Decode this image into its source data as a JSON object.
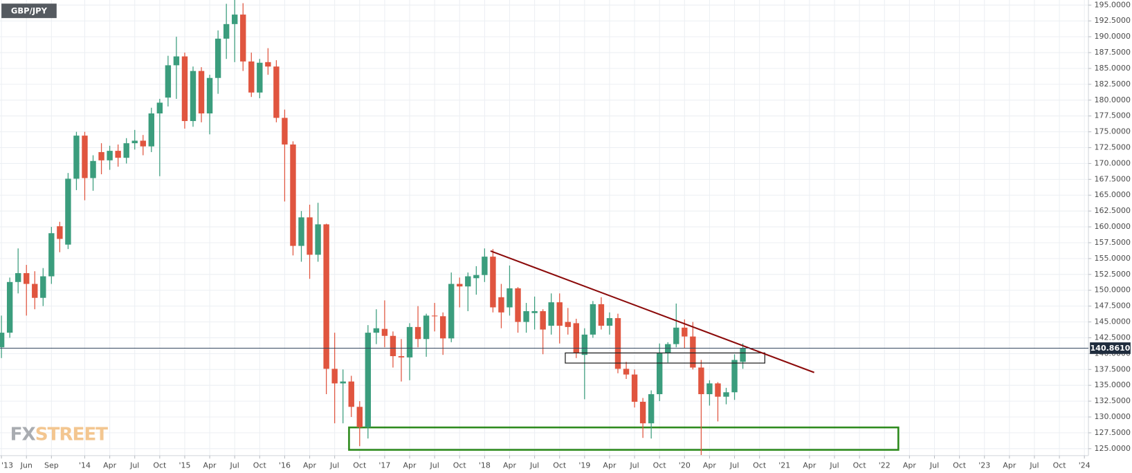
{
  "chart_data": {
    "type": "candlestick",
    "symbol": "GBP/JPY",
    "watermark": {
      "left": "FX",
      "right": "STREET"
    },
    "up_color": "#3b9d7d",
    "down_color": "#e0553f",
    "grid": true,
    "x": [
      "2013-03",
      "2013-04",
      "2013-05",
      "2013-06",
      "2013-07",
      "2013-08",
      "2013-09",
      "2013-10",
      "2013-11",
      "2013-12",
      "2014-01",
      "2014-02",
      "2014-03",
      "2014-04",
      "2014-05",
      "2014-06",
      "2014-07",
      "2014-08",
      "2014-09",
      "2014-10",
      "2014-11",
      "2014-12",
      "2015-01",
      "2015-02",
      "2015-03",
      "2015-04",
      "2015-05",
      "2015-06",
      "2015-07",
      "2015-08",
      "2015-09",
      "2015-10",
      "2015-11",
      "2015-12",
      "2016-01",
      "2016-02",
      "2016-03",
      "2016-04",
      "2016-05",
      "2016-06",
      "2016-07",
      "2016-08",
      "2016-09",
      "2016-10",
      "2016-11",
      "2016-12",
      "2017-01",
      "2017-02",
      "2017-03",
      "2017-04",
      "2017-05",
      "2017-06",
      "2017-07",
      "2017-08",
      "2017-09",
      "2017-10",
      "2017-11",
      "2017-12",
      "2018-01",
      "2018-02",
      "2018-03",
      "2018-04",
      "2018-05",
      "2018-06",
      "2018-07",
      "2018-08",
      "2018-09",
      "2018-10",
      "2018-11",
      "2018-12",
      "2019-01",
      "2019-02",
      "2019-03",
      "2019-04",
      "2019-05",
      "2019-06",
      "2019-07",
      "2019-08",
      "2019-09",
      "2019-10",
      "2019-11",
      "2019-12",
      "2020-01",
      "2020-02",
      "2020-03",
      "2020-04",
      "2020-05",
      "2020-06",
      "2020-07",
      "2020-08"
    ],
    "open": [
      141.0,
      143.3,
      151.3,
      152.7,
      151.0,
      148.8,
      152.2,
      160.1,
      157.2,
      167.6,
      174.4,
      167.7,
      171.8,
      170.5,
      172.0,
      170.9,
      173.2,
      173.6,
      172.7,
      177.9,
      180.4,
      185.5,
      186.9,
      176.7,
      184.6,
      177.9,
      183.5,
      189.7,
      192.0,
      193.5,
      186.1,
      181.2,
      186.0,
      185.3,
      177.2,
      173.0,
      157.0,
      161.5,
      155.6,
      160.4,
      137.6,
      135.3,
      135.6,
      131.6,
      128.4,
      143.3,
      143.9,
      142.8,
      139.6,
      139.4,
      144.2,
      142.3,
      146.0,
      145.9,
      142.4,
      151.0,
      150.6,
      151.9,
      152.4,
      155.3,
      148.9,
      147.3,
      150.3,
      145.0,
      146.4,
      146.7,
      144.4,
      148.1,
      145.0,
      144.8,
      139.8,
      143.0,
      147.8,
      144.4,
      145.6,
      137.6,
      136.7,
      132.4,
      129.0,
      133.6,
      140.1,
      141.5,
      144.1,
      142.7,
      137.8,
      133.6,
      135.3,
      133.2,
      133.9,
      138.7
    ],
    "high": [
      146.0,
      152.0,
      156.6,
      154.0,
      153.0,
      153.5,
      160.0,
      160.8,
      168.5,
      175.0,
      175.0,
      171.3,
      173.2,
      172.8,
      173.0,
      174.0,
      175.3,
      174.5,
      178.8,
      180.2,
      187.0,
      190.0,
      187.5,
      185.3,
      185.2,
      184.0,
      191.0,
      195.2,
      195.8,
      195.3,
      187.5,
      186.5,
      188.2,
      186.3,
      178.5,
      173.5,
      162.5,
      163.5,
      163.8,
      160.5,
      143.3,
      137.5,
      136.5,
      132.5,
      144.5,
      147.0,
      148.4,
      143.5,
      142.3,
      144.8,
      147.5,
      146.3,
      148.0,
      146.5,
      152.8,
      152.0,
      152.8,
      153.8,
      156.6,
      156.5,
      151.0,
      153.9,
      150.5,
      148.0,
      149.0,
      147.0,
      149.5,
      149.5,
      147.2,
      145.5,
      144.0,
      148.3,
      148.9,
      146.5,
      146.3,
      138.7,
      137.5,
      133.0,
      134.2,
      141.6,
      141.8,
      147.9,
      145.4,
      145.0,
      139.0,
      135.8,
      135.5,
      134.6,
      139.9,
      141.6
    ],
    "low": [
      139.3,
      142.5,
      149.5,
      146.0,
      147.0,
      147.5,
      151.0,
      156.0,
      156.5,
      165.8,
      164.2,
      165.7,
      168.3,
      169.0,
      169.5,
      170.0,
      172.2,
      171.3,
      171.8,
      168.0,
      179.0,
      180.2,
      175.5,
      175.8,
      176.5,
      174.6,
      181.0,
      186.5,
      186.0,
      184.6,
      180.5,
      180.3,
      184.0,
      176.5,
      164.0,
      155.5,
      154.5,
      151.8,
      154.5,
      133.6,
      129.0,
      129.0,
      130.0,
      125.4,
      126.6,
      141.5,
      141.0,
      137.8,
      135.6,
      135.8,
      141.0,
      139.5,
      143.5,
      139.8,
      141.8,
      147.3,
      146.7,
      149.3,
      151.3,
      146.5,
      144.0,
      146.0,
      143.3,
      143.3,
      143.8,
      139.9,
      143.0,
      141.6,
      143.0,
      139.3,
      132.8,
      142.5,
      143.8,
      143.0,
      136.9,
      136.0,
      131.5,
      126.7,
      126.6,
      132.5,
      138.6,
      141.0,
      140.8,
      137.5,
      124.0,
      131.8,
      129.3,
      132.0,
      132.7,
      137.6
    ],
    "close": [
      143.3,
      151.3,
      152.7,
      151.0,
      148.8,
      152.2,
      159.0,
      158.1,
      167.6,
      174.4,
      167.7,
      170.4,
      170.5,
      172.0,
      170.9,
      173.2,
      173.6,
      172.7,
      177.9,
      179.6,
      185.5,
      186.9,
      176.7,
      184.6,
      177.9,
      183.5,
      189.7,
      192.0,
      193.5,
      186.1,
      181.2,
      185.9,
      185.3,
      177.2,
      173.0,
      157.0,
      161.5,
      155.6,
      160.4,
      137.6,
      135.3,
      135.6,
      131.6,
      128.4,
      143.3,
      144.0,
      142.8,
      139.6,
      139.4,
      144.2,
      142.3,
      146.0,
      145.9,
      142.4,
      151.0,
      150.6,
      152.2,
      152.4,
      155.3,
      147.3,
      146.5,
      150.3,
      145.0,
      146.7,
      146.7,
      143.8,
      148.1,
      144.4,
      144.2,
      140.1,
      143.0,
      147.8,
      144.4,
      145.6,
      137.6,
      136.7,
      132.4,
      129.0,
      133.6,
      140.1,
      141.5,
      144.1,
      142.7,
      137.8,
      133.6,
      135.3,
      133.2,
      133.9,
      139.0,
      140.861
    ],
    "last_price": {
      "value": 140.861,
      "label": "140.8610"
    },
    "xlim": [
      "2013-03",
      "2024-01"
    ],
    "ylim": [
      123.9,
      195.8
    ],
    "xticks": [
      {
        "value": "2013-03",
        "label": "'13"
      },
      {
        "value": "2013-06",
        "label": "Jun"
      },
      {
        "value": "2013-09",
        "label": "Sep"
      },
      {
        "value": "2014-01",
        "label": "'14"
      },
      {
        "value": "2014-04",
        "label": "Apr"
      },
      {
        "value": "2014-07",
        "label": "Jul"
      },
      {
        "value": "2014-10",
        "label": "Oct"
      },
      {
        "value": "2015-01",
        "label": "'15"
      },
      {
        "value": "2015-04",
        "label": "Apr"
      },
      {
        "value": "2015-07",
        "label": "Jul"
      },
      {
        "value": "2015-10",
        "label": "Oct"
      },
      {
        "value": "2016-01",
        "label": "'16"
      },
      {
        "value": "2016-04",
        "label": "Apr"
      },
      {
        "value": "2016-07",
        "label": "Jul"
      },
      {
        "value": "2016-10",
        "label": "Oct"
      },
      {
        "value": "2017-01",
        "label": "'17"
      },
      {
        "value": "2017-04",
        "label": "Apr"
      },
      {
        "value": "2017-07",
        "label": "Jul"
      },
      {
        "value": "2017-10",
        "label": "Oct"
      },
      {
        "value": "2018-01",
        "label": "'18"
      },
      {
        "value": "2018-04",
        "label": "Apr"
      },
      {
        "value": "2018-07",
        "label": "Jul"
      },
      {
        "value": "2018-10",
        "label": "Oct"
      },
      {
        "value": "2019-01",
        "label": "'19"
      },
      {
        "value": "2019-04",
        "label": "Apr"
      },
      {
        "value": "2019-07",
        "label": "Jul"
      },
      {
        "value": "2019-10",
        "label": "Oct"
      },
      {
        "value": "2020-01",
        "label": "'20"
      },
      {
        "value": "2020-04",
        "label": "Apr"
      },
      {
        "value": "2020-07",
        "label": "Jul"
      },
      {
        "value": "2020-10",
        "label": "Oct"
      },
      {
        "value": "2021-01",
        "label": "'21"
      },
      {
        "value": "2021-04",
        "label": "Apr"
      },
      {
        "value": "2021-07",
        "label": "Jul"
      },
      {
        "value": "2021-10",
        "label": "Oct"
      },
      {
        "value": "2022-01",
        "label": "'22"
      },
      {
        "value": "2022-04",
        "label": "Apr"
      },
      {
        "value": "2022-07",
        "label": "Jul"
      },
      {
        "value": "2022-10",
        "label": "Oct"
      },
      {
        "value": "2023-01",
        "label": "'23"
      },
      {
        "value": "2023-04",
        "label": "Apr"
      },
      {
        "value": "2023-07",
        "label": "Jul"
      },
      {
        "value": "2023-10",
        "label": "Oct"
      },
      {
        "value": "2024-01",
        "label": "'24"
      }
    ],
    "yticks": [
      {
        "value": 125,
        "label": "125.0000"
      },
      {
        "value": 127.5,
        "label": "127.5000"
      },
      {
        "value": 130,
        "label": "130.0000"
      },
      {
        "value": 132.5,
        "label": "132.5000"
      },
      {
        "value": 135,
        "label": "135.0000"
      },
      {
        "value": 137.5,
        "label": "137.5000"
      },
      {
        "value": 140,
        "label": "140.0000"
      },
      {
        "value": 142.5,
        "label": "142.5000"
      },
      {
        "value": 145,
        "label": "145.0000"
      },
      {
        "value": 147.5,
        "label": "147.5000"
      },
      {
        "value": 150,
        "label": "150.0000"
      },
      {
        "value": 152.5,
        "label": "152.5000"
      },
      {
        "value": 155,
        "label": "155.0000"
      },
      {
        "value": 157.5,
        "label": "157.5000"
      },
      {
        "value": 160,
        "label": "160.0000"
      },
      {
        "value": 162.5,
        "label": "162.5000"
      },
      {
        "value": 165,
        "label": "165.0000"
      },
      {
        "value": 167.5,
        "label": "167.5000"
      },
      {
        "value": 170,
        "label": "170.0000"
      },
      {
        "value": 172.5,
        "label": "172.5000"
      },
      {
        "value": 175,
        "label": "175.0000"
      },
      {
        "value": 177.5,
        "label": "177.5000"
      },
      {
        "value": 180,
        "label": "180.0000"
      },
      {
        "value": 182.5,
        "label": "182.5000"
      },
      {
        "value": 185,
        "label": "185.0000"
      },
      {
        "value": 187.5,
        "label": "187.5000"
      },
      {
        "value": 190,
        "label": "190.0000"
      },
      {
        "value": 192.5,
        "label": "192.5000"
      },
      {
        "value": 195,
        "label": "195.0000"
      }
    ]
  }
}
